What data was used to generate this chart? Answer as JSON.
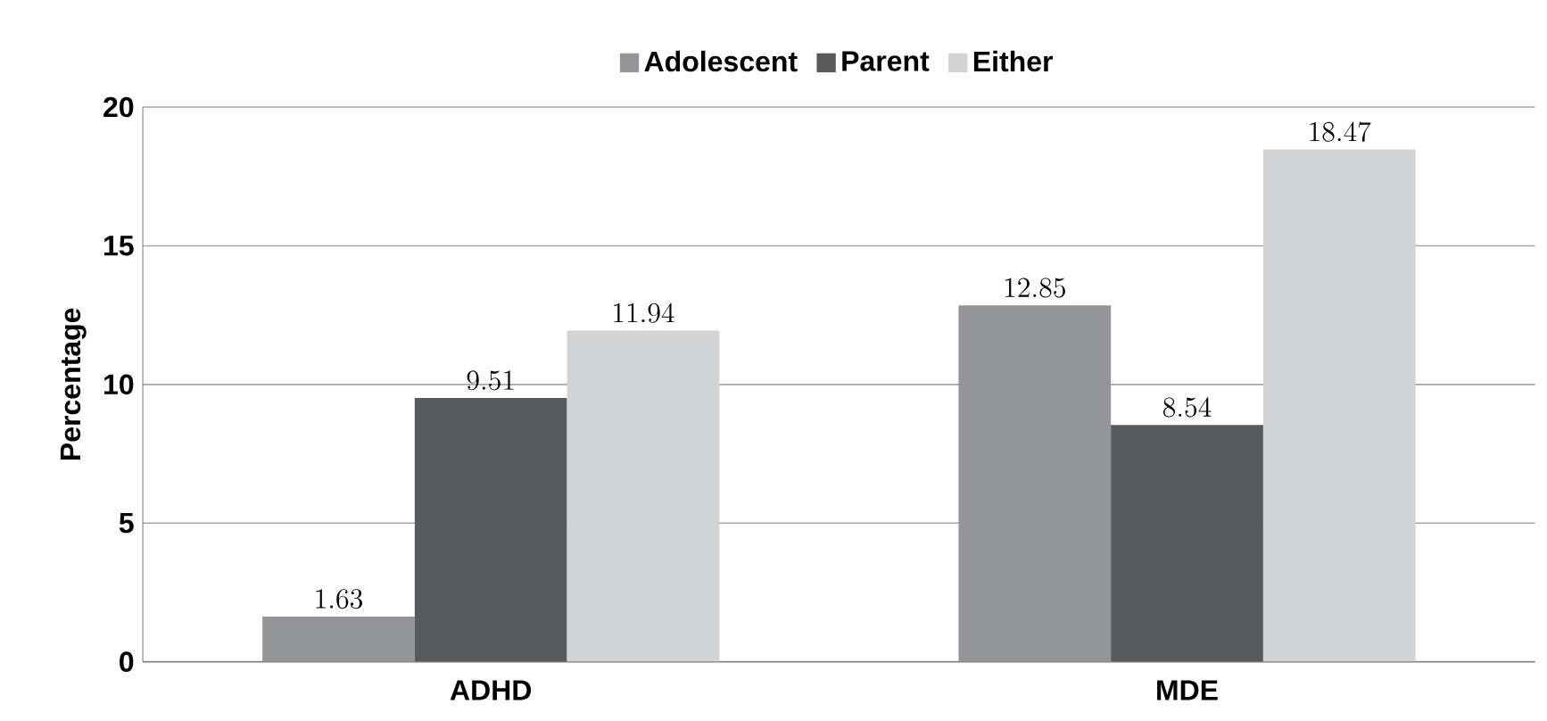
{
  "chart_data": {
    "type": "bar",
    "ylabel": "Percentage",
    "categories": [
      "ADHD",
      "MDE"
    ],
    "series": [
      {
        "name": "Adolescent",
        "color": "#939598",
        "values": [
          1.63,
          12.85
        ]
      },
      {
        "name": "Parent",
        "color": "#58595b",
        "values": [
          9.51,
          8.54
        ]
      },
      {
        "name": "Either",
        "color": "#d1d3d4",
        "values": [
          11.94,
          18.47
        ]
      }
    ],
    "ylim": [
      0,
      20
    ],
    "yticks": [
      0,
      5,
      10,
      15,
      20
    ],
    "grid": "y",
    "legend": "top",
    "data_labels": true
  }
}
